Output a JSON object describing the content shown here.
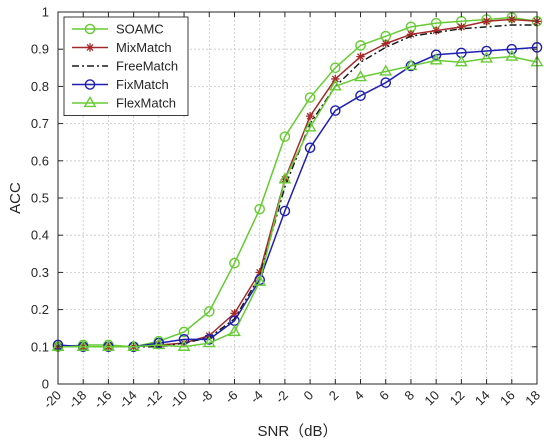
{
  "chart_data": {
    "type": "line",
    "xlabel": "SNR（dB）",
    "ylabel": "ACC",
    "xlim": [
      -20,
      18
    ],
    "ylim": [
      0,
      1
    ],
    "grid": true,
    "legend_position": "top-left",
    "x_ticks": [
      -20,
      -18,
      -16,
      -14,
      -12,
      -10,
      -8,
      -6,
      -4,
      -2,
      0,
      2,
      4,
      6,
      8,
      10,
      12,
      14,
      16,
      18
    ],
    "x_tick_labels": [
      "-20",
      "-18",
      "-16",
      "-14",
      "-12",
      "-10",
      "-8",
      "-6",
      "-4",
      "-2",
      "0",
      "2",
      "4",
      "6",
      "8",
      "10",
      "12",
      "14",
      "16",
      "18"
    ],
    "y_ticks": [
      0,
      0.1,
      0.2,
      0.3,
      0.4,
      0.5,
      0.6,
      0.7,
      0.8,
      0.9,
      1
    ],
    "y_tick_labels": [
      "0",
      "0.1",
      "0.2",
      "0.3",
      "0.4",
      "0.5",
      "0.6",
      "0.7",
      "0.8",
      "0.9",
      "1"
    ],
    "x": [
      -20,
      -18,
      -16,
      -14,
      -12,
      -10,
      -8,
      -6,
      -4,
      -2,
      0,
      2,
      4,
      6,
      8,
      10,
      12,
      14,
      16,
      18
    ],
    "series": [
      {
        "name": "SOAMC",
        "color": "#66cc33",
        "line_style": "solid",
        "marker": "circle",
        "values": [
          0.1,
          0.105,
          0.105,
          0.1,
          0.115,
          0.14,
          0.195,
          0.325,
          0.47,
          0.665,
          0.77,
          0.85,
          0.91,
          0.935,
          0.96,
          0.97,
          0.975,
          0.98,
          0.985,
          0.975
        ]
      },
      {
        "name": "MixMatch",
        "color": "#a52a2a",
        "line_style": "solid",
        "marker": "asterisk",
        "values": [
          0.1,
          0.1,
          0.1,
          0.1,
          0.105,
          0.11,
          0.13,
          0.19,
          0.3,
          0.55,
          0.72,
          0.82,
          0.88,
          0.915,
          0.94,
          0.95,
          0.96,
          0.975,
          0.98,
          0.975
        ]
      },
      {
        "name": "FreeMatch",
        "color": "#1a1a1a",
        "line_style": "dashdot",
        "marker": "none",
        "values": [
          0.1,
          0.1,
          0.1,
          0.1,
          0.1,
          0.11,
          0.125,
          0.175,
          0.29,
          0.53,
          0.7,
          0.8,
          0.865,
          0.905,
          0.935,
          0.945,
          0.955,
          0.96,
          0.965,
          0.965
        ]
      },
      {
        "name": "FixMatch",
        "color": "#1f1fb4",
        "line_style": "solid",
        "marker": "circle",
        "values": [
          0.105,
          0.1,
          0.1,
          0.1,
          0.11,
          0.12,
          0.12,
          0.17,
          0.28,
          0.465,
          0.635,
          0.735,
          0.775,
          0.81,
          0.855,
          0.885,
          0.89,
          0.895,
          0.9,
          0.905
        ]
      },
      {
        "name": "FlexMatch",
        "color": "#66cc33",
        "line_style": "solid",
        "marker": "triangle",
        "values": [
          0.1,
          0.1,
          0.1,
          0.1,
          0.105,
          0.1,
          0.11,
          0.14,
          0.275,
          0.55,
          0.69,
          0.8,
          0.825,
          0.84,
          0.855,
          0.87,
          0.865,
          0.875,
          0.88,
          0.865
        ]
      }
    ]
  }
}
